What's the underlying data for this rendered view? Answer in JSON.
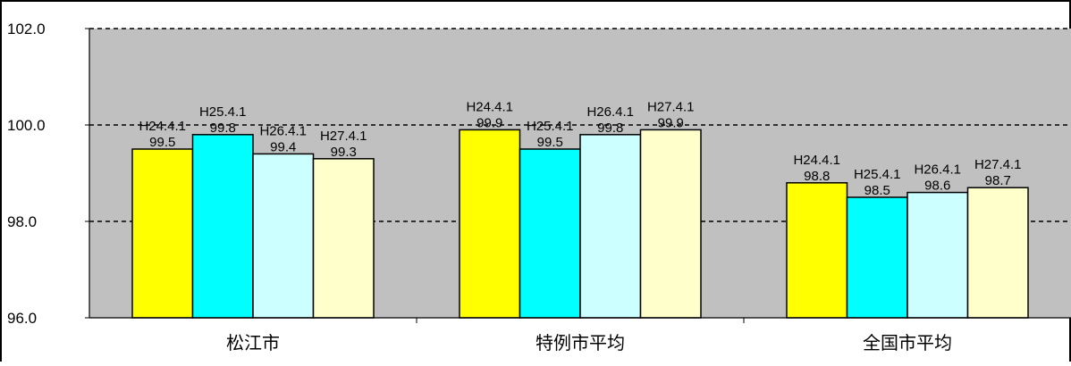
{
  "chart_data": {
    "type": "bar",
    "categories": [
      "松江市",
      "特例市平均",
      "全国市平均"
    ],
    "series": [
      {
        "name": "H24.4.1",
        "color": "#ffff00",
        "values": [
          99.5,
          99.9,
          98.8
        ]
      },
      {
        "name": "H25.4.1",
        "color": "#00ffff",
        "values": [
          99.8,
          99.5,
          98.5
        ]
      },
      {
        "name": "H26.4.1",
        "color": "#ccffff",
        "values": [
          99.4,
          99.8,
          98.6
        ]
      },
      {
        "name": "H27.4.1",
        "color": "#ffffcc",
        "values": [
          99.3,
          99.9,
          98.7
        ]
      }
    ],
    "ylim": [
      96.0,
      102.0
    ],
    "yticks": [
      "96.0",
      "98.0",
      "100.0",
      "102.0"
    ],
    "ytick_values": [
      96.0,
      98.0,
      100.0,
      102.0
    ],
    "grid": "dashed horizontal",
    "plot_background": "#c0c0c0",
    "bar_outline": "#000000",
    "value_format_decimals": 1
  }
}
